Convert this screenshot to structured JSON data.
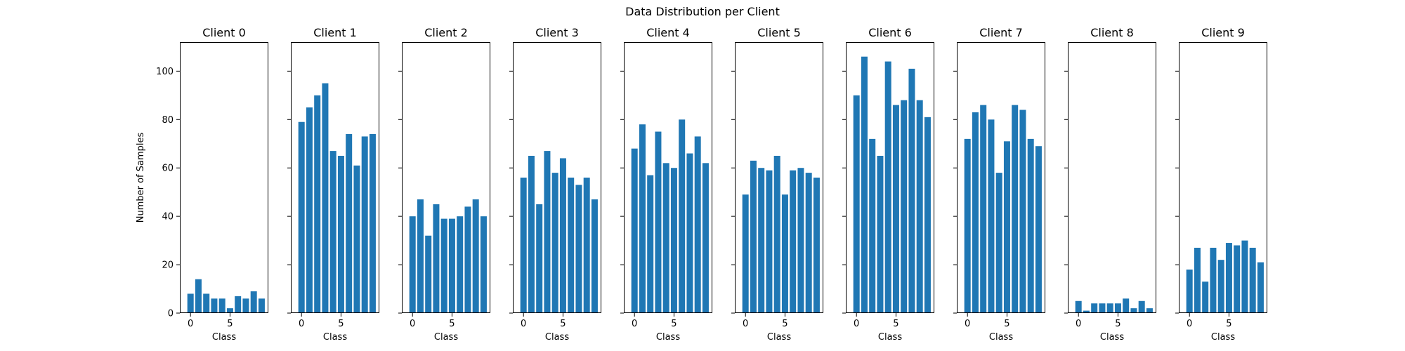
{
  "figure": {
    "title": "Data Distribution per Client",
    "bar_color": "#1f77b4"
  },
  "chart_data": {
    "type": "bar",
    "title": "Data Distribution per Client",
    "xlabel": "Class",
    "ylabel": "Number of Samples",
    "ylim": [
      0,
      112
    ],
    "yticks": [
      0,
      20,
      40,
      60,
      80,
      100
    ],
    "xticks": [
      0,
      5
    ],
    "categories": [
      0,
      1,
      2,
      3,
      4,
      5,
      6,
      7,
      8,
      9
    ],
    "shared_y": true,
    "grid": false,
    "legend": "none",
    "series": [
      {
        "name": "Client 0",
        "values": [
          8,
          14,
          8,
          6,
          6,
          2,
          7,
          6,
          9,
          6
        ]
      },
      {
        "name": "Client 1",
        "values": [
          79,
          85,
          90,
          95,
          67,
          65,
          74,
          61,
          73,
          74
        ]
      },
      {
        "name": "Client 2",
        "values": [
          40,
          47,
          32,
          45,
          39,
          39,
          40,
          44,
          47,
          40
        ]
      },
      {
        "name": "Client 3",
        "values": [
          56,
          65,
          45,
          67,
          58,
          64,
          56,
          53,
          56,
          47
        ]
      },
      {
        "name": "Client 4",
        "values": [
          68,
          78,
          57,
          75,
          62,
          60,
          80,
          66,
          73,
          62
        ]
      },
      {
        "name": "Client 5",
        "values": [
          49,
          63,
          60,
          59,
          65,
          49,
          59,
          60,
          58,
          56
        ]
      },
      {
        "name": "Client 6",
        "values": [
          90,
          106,
          72,
          65,
          104,
          86,
          88,
          101,
          88,
          81
        ]
      },
      {
        "name": "Client 7",
        "values": [
          72,
          83,
          86,
          80,
          58,
          71,
          86,
          84,
          72,
          69
        ]
      },
      {
        "name": "Client 8",
        "values": [
          5,
          1,
          4,
          4,
          4,
          4,
          6,
          2,
          5,
          2
        ]
      },
      {
        "name": "Client 9",
        "values": [
          18,
          27,
          13,
          27,
          22,
          29,
          28,
          30,
          27,
          21
        ]
      }
    ]
  }
}
